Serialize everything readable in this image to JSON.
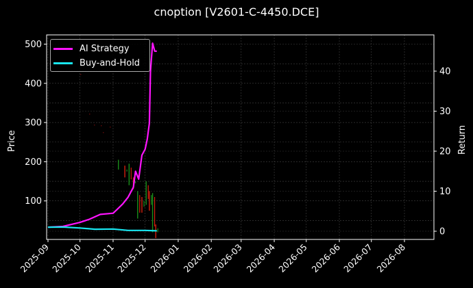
{
  "chart_data": {
    "type": "line",
    "title": "cnoption [V2601-C-4450.DCE]",
    "xlabel": "",
    "ylabel": "Price",
    "ylabel_right": "Return",
    "x_ticks": [
      "2025-09",
      "2025-10",
      "2025-11",
      "2025-12",
      "2026-01",
      "2026-02",
      "2026-03",
      "2026-04",
      "2026-05",
      "2026-06",
      "2026-07",
      "2026-08"
    ],
    "y_ticks_left": [
      100,
      200,
      300,
      400,
      500
    ],
    "y_ticks_right": [
      0,
      10,
      20,
      30,
      40
    ],
    "ylim_left": [
      0,
      520
    ],
    "ylim_right": [
      -1.5,
      49
    ],
    "grid": true,
    "legend_position": "upper left",
    "legend": [
      "AI Strategy",
      "Buy-and-Hold"
    ],
    "colors": {
      "ai_strategy": "#ff14ff",
      "buy_and_hold": "#19e6f0",
      "candle_up": "#1a8f1a",
      "candle_down": "#d4200e",
      "background": "#000000",
      "grid": "#555555"
    },
    "series": [
      {
        "name": "AI Strategy",
        "axis": "right",
        "x": [
          "2025-09-01",
          "2025-09-15",
          "2025-10-01",
          "2025-10-10",
          "2025-10-20",
          "2025-11-01",
          "2025-11-05",
          "2025-11-10",
          "2025-11-15",
          "2025-11-20",
          "2025-11-22",
          "2025-11-25",
          "2025-11-28",
          "2025-12-01",
          "2025-12-03",
          "2025-12-05",
          "2025-12-06",
          "2025-12-08",
          "2025-12-10",
          "2025-12-12"
        ],
        "values": [
          1.0,
          1.2,
          2.2,
          3.0,
          4.2,
          4.5,
          5.5,
          6.8,
          8.5,
          11.0,
          15.0,
          13.0,
          19.0,
          20.5,
          23.0,
          27.0,
          40.0,
          47.0,
          45.0,
          45.0
        ]
      },
      {
        "name": "Buy-and-Hold",
        "axis": "right",
        "x": [
          "2025-09-01",
          "2025-09-15",
          "2025-10-01",
          "2025-10-15",
          "2025-11-01",
          "2025-11-15",
          "2025-12-01",
          "2025-12-12"
        ],
        "values": [
          1.0,
          1.05,
          0.8,
          0.5,
          0.55,
          0.2,
          0.2,
          0.1
        ]
      }
    ],
    "candlesticks_approx": {
      "note": "Price candles (left axis), sparse low-visibility ticks Oct–Nov near 290–320, active Nov–Dec between ~20 and ~205",
      "x": [
        "2025-11-06",
        "2025-11-12",
        "2025-11-16",
        "2025-11-20",
        "2025-11-24",
        "2025-11-28",
        "2025-12-02",
        "2025-12-05",
        "2025-12-08",
        "2025-12-11"
      ],
      "high": [
        205,
        190,
        195,
        160,
        125,
        110,
        150,
        125,
        120,
        40
      ],
      "low": [
        180,
        160,
        140,
        130,
        55,
        70,
        90,
        75,
        20,
        5
      ]
    }
  }
}
